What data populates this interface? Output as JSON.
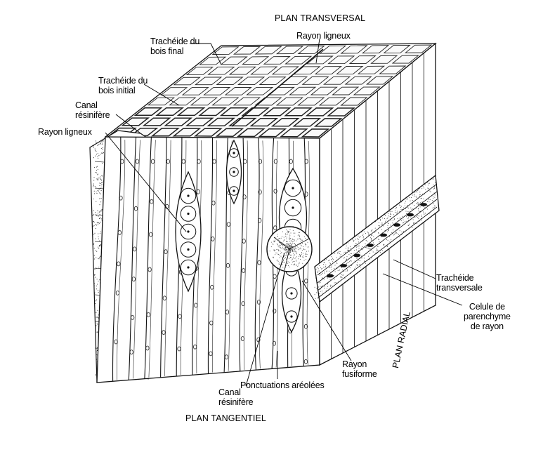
{
  "planes": {
    "transversal": "PLAN TRANSVERSAL",
    "tangentiel": "PLAN TANGENTIEL",
    "radial": "PLAN RADIAL"
  },
  "labels": {
    "rayon_ligneux_top": "Rayon ligneux",
    "tracheide_bois_final": [
      "Trachéide du",
      "bois final"
    ],
    "tracheide_bois_initial": [
      "Trachéide du",
      "bois initial"
    ],
    "canal_resinifere_left": [
      "Canal",
      "résinifère"
    ],
    "rayon_ligneux_left": "Rayon ligneux",
    "tracheide_transversale": [
      "Trachéide",
      "transversale"
    ],
    "cellule_parenchyme": [
      "Celule de",
      "parenchyme",
      "de rayon"
    ],
    "rayon_fusiforme": [
      "Rayon",
      "fusiforme"
    ],
    "ponctuations_areolees": "Ponctuations aréolées",
    "canal_resinifere_bottom": [
      "Canal",
      "résinifère"
    ]
  }
}
